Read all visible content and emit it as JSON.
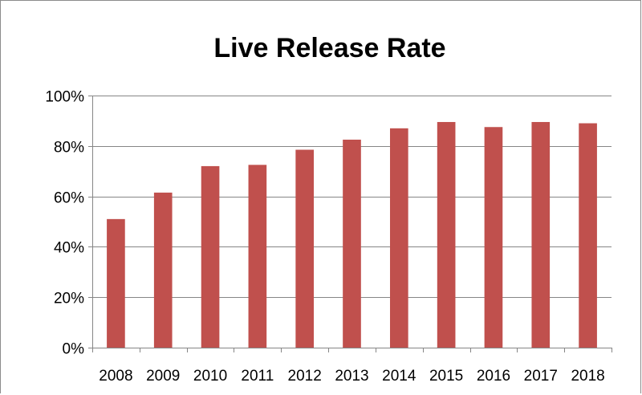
{
  "chart_data": {
    "type": "bar",
    "title": "Live Release Rate",
    "xlabel": "",
    "ylabel": "",
    "categories": [
      "2008",
      "2009",
      "2010",
      "2011",
      "2012",
      "2013",
      "2014",
      "2015",
      "2016",
      "2017",
      "2018"
    ],
    "series": [
      {
        "values": [
          0.51,
          0.615,
          0.72,
          0.725,
          0.785,
          0.825,
          0.87,
          0.895,
          0.875,
          0.895,
          0.89
        ]
      }
    ],
    "ylim": [
      0,
      1
    ],
    "yticks": [
      0,
      0.2,
      0.4,
      0.6,
      0.8,
      1.0
    ],
    "ytick_labels": [
      "0%",
      "20%",
      "40%",
      "60%",
      "80%",
      "100%"
    ],
    "grid": "horizontal",
    "legend": "none",
    "bar_color": "#c0504d"
  }
}
